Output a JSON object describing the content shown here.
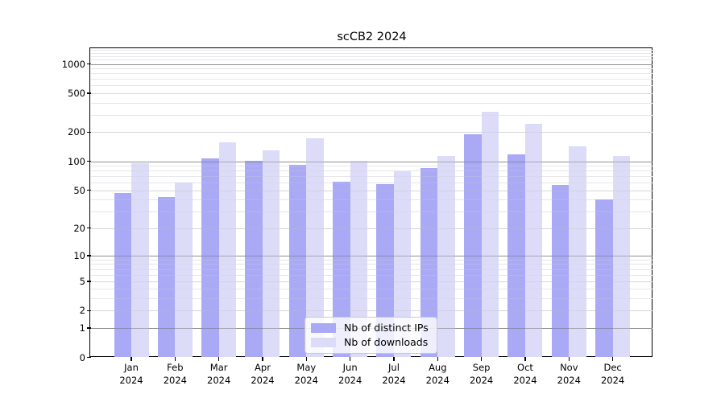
{
  "title": "scCB2 2024",
  "colors": {
    "ips_bar": "#a9a9f6",
    "downloads_bar": "#dcdcf9",
    "grid_major": "#b0b0b0",
    "grid_mid": "#e4e4e6",
    "grid_minor": "#f1f1f4",
    "grid_major_overlay": "rgba(110,110,110,0.50)",
    "grid_mid_overlay": "rgba(185,185,192,0.35)",
    "grid_minor_overlay": "rgba(205,205,214,0.30)",
    "axis": "#000000"
  },
  "legend": {
    "items": [
      {
        "id": "ips",
        "label": "Nb of distinct IPs"
      },
      {
        "id": "downloads",
        "label": "Nb of downloads"
      }
    ]
  },
  "chart_data": {
    "type": "bar",
    "title": "scCB2 2024",
    "categories": [
      "Jan 2024",
      "Feb 2024",
      "Mar 2024",
      "Apr 2024",
      "May 2024",
      "Jun 2024",
      "Jul 2024",
      "Aug 2024",
      "Sep 2024",
      "Oct 2024",
      "Nov 2024",
      "Dec 2024"
    ],
    "month_labels": [
      "Jan",
      "Feb",
      "Mar",
      "Apr",
      "May",
      "Jun",
      "Jul",
      "Aug",
      "Sep",
      "Oct",
      "Nov",
      "Dec"
    ],
    "year_label": "2024",
    "series": [
      {
        "name": "Nb of distinct IPs",
        "color_key": "ips_bar",
        "values": [
          47,
          42,
          106,
          100,
          92,
          61,
          58,
          85,
          188,
          118,
          57,
          40
        ]
      },
      {
        "name": "Nb of downloads",
        "color_key": "downloads_bar",
        "values": [
          95,
          60,
          156,
          128,
          172,
          100,
          79,
          113,
          320,
          240,
          142,
          112
        ]
      }
    ],
    "y_scale": "log1p",
    "y_ticks": [
      0,
      1,
      2,
      5,
      10,
      20,
      50,
      100,
      200,
      500,
      1000
    ],
    "ylim": [
      0,
      1410
    ],
    "grid": true,
    "legend_position": "lower center",
    "xlabel": "",
    "ylabel": ""
  }
}
